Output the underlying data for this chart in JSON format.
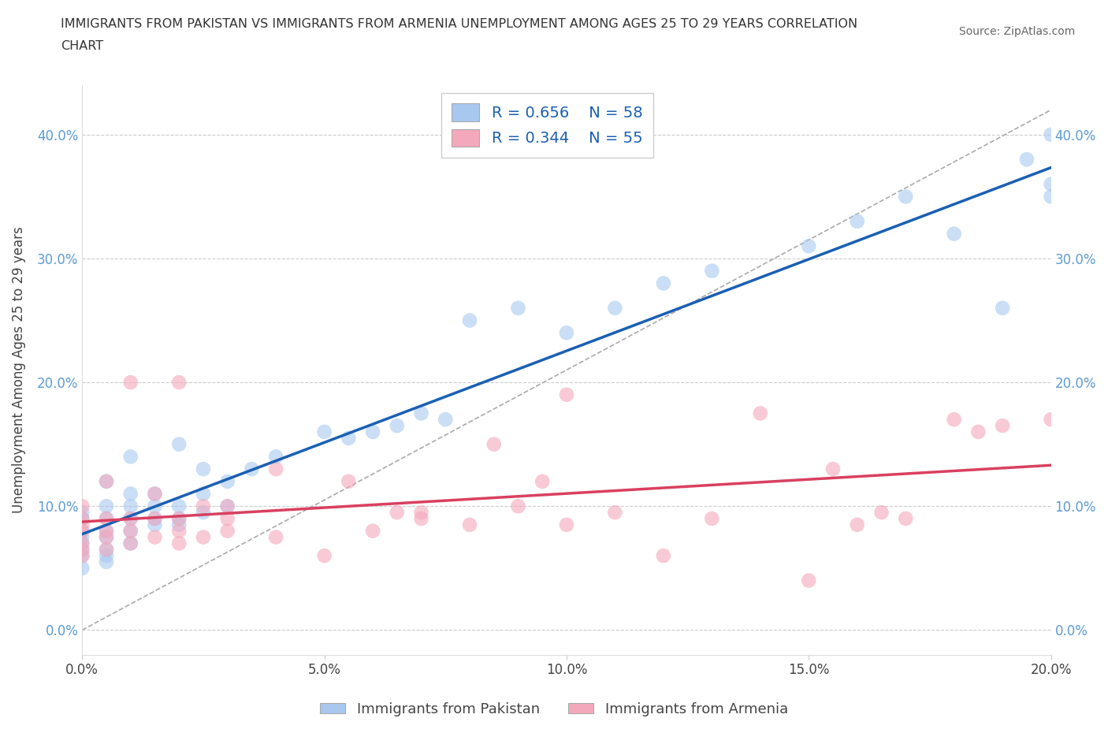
{
  "title_line1": "IMMIGRANTS FROM PAKISTAN VS IMMIGRANTS FROM ARMENIA UNEMPLOYMENT AMONG AGES 25 TO 29 YEARS CORRELATION",
  "title_line2": "CHART",
  "source": "Source: ZipAtlas.com",
  "ylabel": "Unemployment Among Ages 25 to 29 years",
  "xlim": [
    0.0,
    0.2
  ],
  "ylim": [
    -0.02,
    0.44
  ],
  "yticks": [
    0.0,
    0.1,
    0.2,
    0.3,
    0.4
  ],
  "xticks": [
    0.0,
    0.05,
    0.1,
    0.15,
    0.2
  ],
  "pakistan_R": 0.656,
  "pakistan_N": 58,
  "armenia_R": 0.344,
  "armenia_N": 55,
  "pakistan_color": "#A8C8F0",
  "armenia_color": "#F4A8BC",
  "pakistan_line_color": "#1A5FB4",
  "armenia_line_color": "#D94060",
  "background_color": "#FFFFFF",
  "pak_scatter_x": [
    0.0,
    0.0,
    0.0,
    0.0,
    0.0,
    0.0,
    0.0,
    0.0,
    0.005,
    0.005,
    0.005,
    0.005,
    0.005,
    0.005,
    0.005,
    0.005,
    0.01,
    0.01,
    0.01,
    0.01,
    0.01,
    0.01,
    0.015,
    0.015,
    0.015,
    0.015,
    0.02,
    0.02,
    0.02,
    0.02,
    0.025,
    0.025,
    0.025,
    0.03,
    0.03,
    0.035,
    0.04,
    0.05,
    0.055,
    0.06,
    0.065,
    0.07,
    0.075,
    0.08,
    0.09,
    0.1,
    0.11,
    0.12,
    0.13,
    0.15,
    0.16,
    0.17,
    0.18,
    0.19,
    0.195,
    0.2,
    0.2,
    0.2
  ],
  "pak_scatter_y": [
    0.05,
    0.06,
    0.065,
    0.07,
    0.075,
    0.08,
    0.09,
    0.095,
    0.055,
    0.06,
    0.065,
    0.075,
    0.08,
    0.09,
    0.1,
    0.12,
    0.07,
    0.08,
    0.09,
    0.1,
    0.11,
    0.14,
    0.085,
    0.09,
    0.1,
    0.11,
    0.085,
    0.09,
    0.1,
    0.15,
    0.095,
    0.11,
    0.13,
    0.1,
    0.12,
    0.13,
    0.14,
    0.16,
    0.155,
    0.16,
    0.165,
    0.175,
    0.17,
    0.25,
    0.26,
    0.24,
    0.26,
    0.28,
    0.29,
    0.31,
    0.33,
    0.35,
    0.32,
    0.26,
    0.38,
    0.36,
    0.4,
    0.35
  ],
  "arm_scatter_x": [
    0.0,
    0.0,
    0.0,
    0.0,
    0.0,
    0.0,
    0.0,
    0.005,
    0.005,
    0.005,
    0.005,
    0.005,
    0.01,
    0.01,
    0.01,
    0.01,
    0.015,
    0.015,
    0.015,
    0.02,
    0.02,
    0.02,
    0.02,
    0.025,
    0.025,
    0.03,
    0.03,
    0.03,
    0.04,
    0.04,
    0.05,
    0.055,
    0.06,
    0.065,
    0.07,
    0.07,
    0.08,
    0.085,
    0.09,
    0.095,
    0.1,
    0.1,
    0.11,
    0.12,
    0.13,
    0.14,
    0.15,
    0.155,
    0.16,
    0.165,
    0.17,
    0.18,
    0.185,
    0.19,
    0.2
  ],
  "arm_scatter_y": [
    0.06,
    0.065,
    0.07,
    0.08,
    0.085,
    0.09,
    0.1,
    0.065,
    0.075,
    0.08,
    0.09,
    0.12,
    0.07,
    0.08,
    0.09,
    0.2,
    0.075,
    0.09,
    0.11,
    0.07,
    0.08,
    0.09,
    0.2,
    0.075,
    0.1,
    0.08,
    0.09,
    0.1,
    0.075,
    0.13,
    0.06,
    0.12,
    0.08,
    0.095,
    0.09,
    0.095,
    0.085,
    0.15,
    0.1,
    0.12,
    0.085,
    0.19,
    0.095,
    0.06,
    0.09,
    0.175,
    0.04,
    0.13,
    0.085,
    0.095,
    0.09,
    0.17,
    0.16,
    0.165,
    0.17
  ],
  "ref_line_x": [
    0.0,
    0.2
  ],
  "ref_line_y": [
    0.0,
    0.42
  ]
}
